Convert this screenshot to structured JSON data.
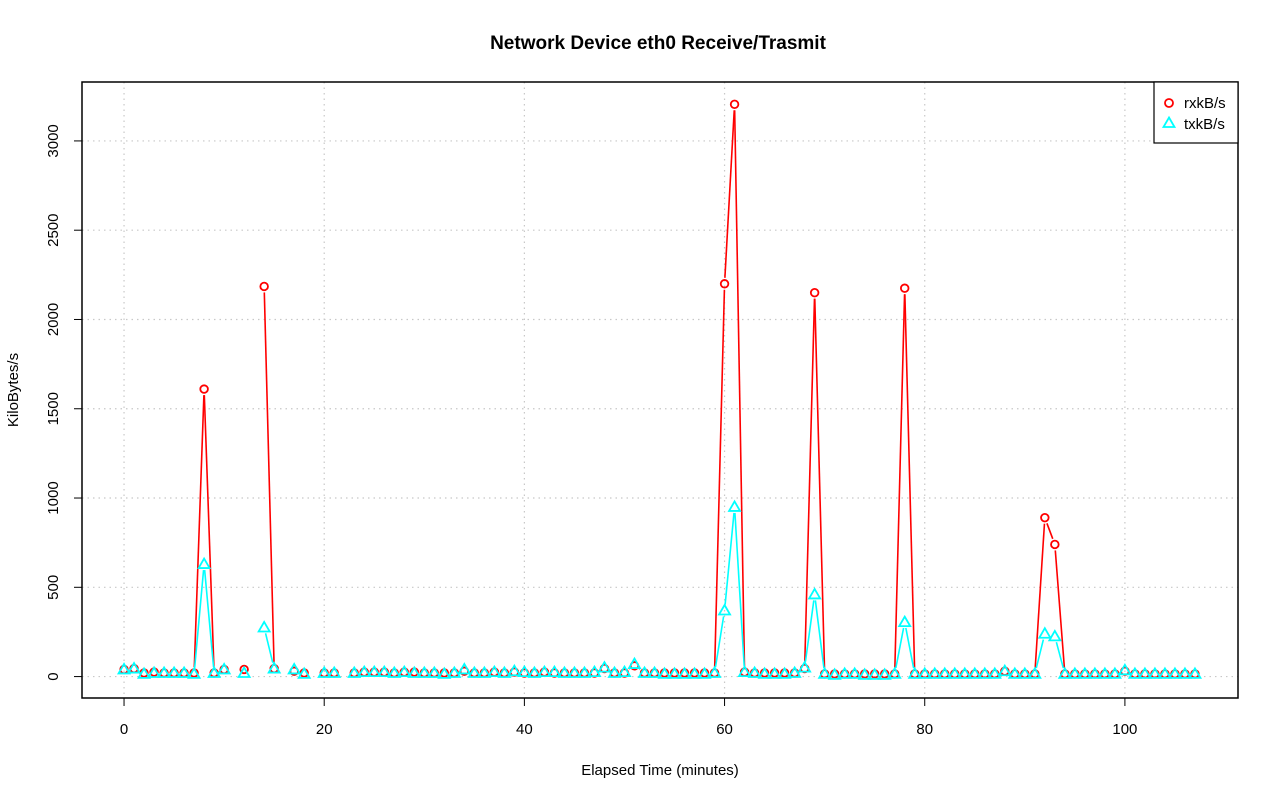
{
  "chart_data": {
    "type": "line",
    "title": "Network Device eth0 Receive/Trasmit",
    "xlabel": "Elapsed Time (minutes)",
    "ylabel": "KiloBytes/s",
    "xlim": [
      -4.2,
      111.3
    ],
    "ylim": [
      -120,
      3330
    ],
    "x_ticks": [
      0,
      20,
      40,
      60,
      80,
      100
    ],
    "x_tick_labels": [
      "0",
      "20",
      "40",
      "60",
      "80",
      "100"
    ],
    "y_ticks": [
      0,
      500,
      1000,
      1500,
      2000,
      2500,
      3000
    ],
    "y_tick_labels": [
      "0",
      "500",
      "1000",
      "1500",
      "2000",
      "2500",
      "3000"
    ],
    "grid": true,
    "legend_position": "top-right",
    "x": [
      0,
      1,
      2,
      3,
      4,
      5,
      6,
      7,
      8,
      9,
      10,
      11,
      12,
      13,
      14,
      15,
      16,
      17,
      18,
      19,
      20,
      21,
      22,
      23,
      24,
      25,
      26,
      27,
      28,
      29,
      30,
      31,
      32,
      33,
      34,
      35,
      36,
      37,
      38,
      39,
      40,
      41,
      42,
      43,
      44,
      45,
      46,
      47,
      48,
      49,
      50,
      51,
      52,
      53,
      54,
      55,
      56,
      57,
      58,
      59,
      60,
      61,
      62,
      63,
      64,
      65,
      66,
      67,
      68,
      69,
      70,
      71,
      72,
      73,
      74,
      75,
      76,
      77,
      78,
      79,
      80,
      81,
      82,
      83,
      84,
      85,
      86,
      87,
      88,
      89,
      90,
      91,
      92,
      93,
      94,
      95,
      96,
      97,
      98,
      99,
      100,
      101,
      102,
      103,
      104,
      105,
      106,
      107
    ],
    "series": [
      {
        "name": "rxkB/s",
        "color": "#ff0000",
        "marker": "circle",
        "values": [
          40,
          45,
          20,
          25,
          20,
          20,
          20,
          20,
          1610,
          20,
          40,
          null,
          40,
          null,
          2185,
          45,
          null,
          30,
          20,
          null,
          20,
          20,
          null,
          20,
          25,
          25,
          25,
          20,
          25,
          25,
          20,
          20,
          20,
          20,
          30,
          20,
          20,
          25,
          20,
          25,
          20,
          20,
          25,
          20,
          20,
          20,
          20,
          20,
          45,
          20,
          20,
          60,
          20,
          20,
          20,
          20,
          20,
          20,
          20,
          20,
          2200,
          3205,
          25,
          20,
          20,
          20,
          20,
          20,
          45,
          2150,
          15,
          15,
          15,
          15,
          15,
          15,
          15,
          15,
          2175,
          15,
          15,
          15,
          15,
          15,
          15,
          15,
          15,
          15,
          30,
          15,
          15,
          15,
          890,
          740,
          15,
          15,
          15,
          15,
          15,
          15,
          30,
          15,
          15,
          15,
          15,
          15,
          15,
          15
        ]
      },
      {
        "name": "txkB/s",
        "color": "#00ffff",
        "marker": "triangle",
        "values": [
          40,
          45,
          15,
          20,
          20,
          20,
          20,
          15,
          630,
          20,
          40,
          null,
          20,
          null,
          275,
          45,
          null,
          40,
          15,
          null,
          20,
          20,
          null,
          20,
          25,
          25,
          25,
          20,
          25,
          20,
          20,
          20,
          15,
          20,
          40,
          20,
          20,
          25,
          20,
          30,
          25,
          20,
          25,
          25,
          20,
          20,
          20,
          25,
          50,
          20,
          25,
          70,
          20,
          20,
          15,
          15,
          15,
          15,
          15,
          20,
          370,
          950,
          25,
          20,
          15,
          15,
          15,
          20,
          50,
          460,
          15,
          10,
          15,
          15,
          10,
          10,
          10,
          15,
          305,
          15,
          15,
          15,
          15,
          15,
          15,
          15,
          15,
          15,
          30,
          15,
          15,
          15,
          240,
          225,
          15,
          15,
          15,
          15,
          15,
          15,
          35,
          15,
          15,
          15,
          15,
          15,
          15,
          15
        ]
      }
    ]
  }
}
